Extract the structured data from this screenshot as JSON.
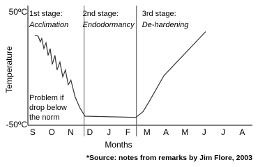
{
  "chart_data": {
    "type": "line",
    "x_label": "Months",
    "y_label": "Temperature",
    "xlim": [
      -0.25,
      11.5
    ],
    "ylim": [
      -50,
      50
    ],
    "xticks": [
      {
        "value": 0,
        "label": "S"
      },
      {
        "value": 1,
        "label": "O"
      },
      {
        "value": 2,
        "label": "N"
      },
      {
        "value": 3,
        "label": "D"
      },
      {
        "value": 4,
        "label": "J"
      },
      {
        "value": 5,
        "label": "F"
      },
      {
        "value": 6,
        "label": "M"
      },
      {
        "value": 7,
        "label": "A"
      },
      {
        "value": 8,
        "label": "M"
      },
      {
        "value": 9,
        "label": "J"
      },
      {
        "value": 10,
        "label": "J"
      },
      {
        "value": 11,
        "label": "A"
      }
    ],
    "yticks": [
      {
        "value": -50,
        "label": "-50ºC"
      },
      {
        "value": 50,
        "label": "50ºC"
      }
    ],
    "stage_boundaries": [
      2.7,
      5.45
    ],
    "stages": [
      {
        "label": "1st stage:",
        "name": "Acclimation"
      },
      {
        "label": "2nd stage:",
        "name": "Endodormancy"
      },
      {
        "label": "3rd stage:",
        "name": "De-hardening"
      }
    ],
    "note": [
      "Problem if",
      "drop below",
      "the norm"
    ],
    "source": "*Source: notes from remarks by Jim Flore, 2003",
    "color": "#333333",
    "x": [
      0.11,
      0.29,
      0.4,
      0.48,
      0.59,
      0.7,
      0.81,
      0.92,
      1.03,
      1.17,
      1.28,
      1.43,
      1.58,
      1.72,
      1.87,
      2.01,
      2.23,
      2.49,
      2.75,
      5.42,
      5.79,
      6.15,
      6.89,
      9.08
    ],
    "values": [
      30,
      29,
      24,
      27,
      18,
      23,
      12,
      18,
      4,
      12,
      -1,
      6,
      -7,
      -1,
      -14,
      -10,
      -25,
      -35,
      -42,
      -43,
      -38,
      -28,
      -6,
      33
    ]
  }
}
